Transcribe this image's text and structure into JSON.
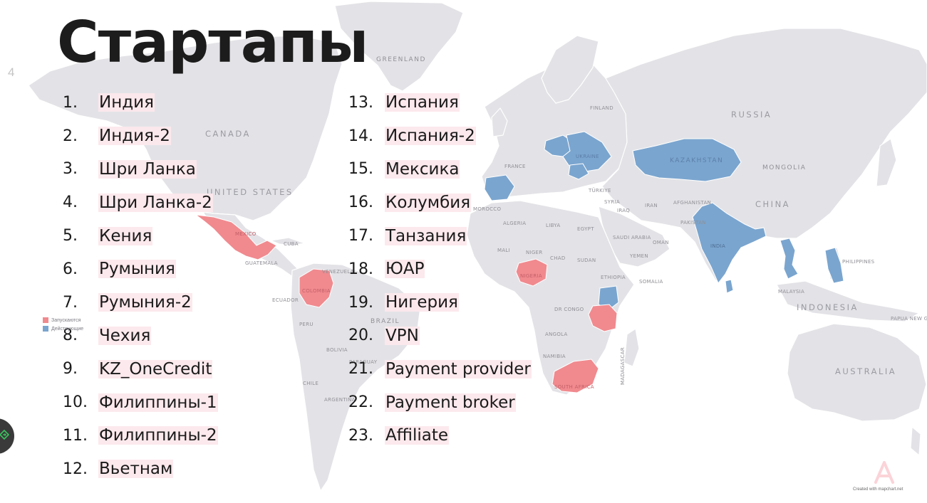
{
  "slide": {
    "title": "Стартапы",
    "page_number": "4"
  },
  "startups_left": [
    {
      "num": "1.",
      "name": "Индия"
    },
    {
      "num": "2.",
      "name": "Индия-2"
    },
    {
      "num": "3.",
      "name": "Шри Ланка"
    },
    {
      "num": "4.",
      "name": "Шри Ланка-2"
    },
    {
      "num": "5.",
      "name": "Кения"
    },
    {
      "num": "6.",
      "name": "Румыния"
    },
    {
      "num": "7.",
      "name": "Румыния-2"
    },
    {
      "num": "8.",
      "name": "Чехия"
    },
    {
      "num": "9.",
      "name": "KZ_OneCredit"
    },
    {
      "num": "10.",
      "name": "Филиппины-1"
    },
    {
      "num": "11.",
      "name": "Филиппины-2"
    },
    {
      "num": "12.",
      "name": "Вьетнам"
    }
  ],
  "startups_right": [
    {
      "num": "13.",
      "name": "Испания"
    },
    {
      "num": "14.",
      "name": "Испания-2"
    },
    {
      "num": "15.",
      "name": "Мексика"
    },
    {
      "num": "16.",
      "name": "Колумбия"
    },
    {
      "num": "17.",
      "name": "Танзания"
    },
    {
      "num": "18.",
      "name": "ЮАР"
    },
    {
      "num": "19.",
      "name": "Нигерия"
    },
    {
      "num": "20.",
      "name": "VPN"
    },
    {
      "num": "21.",
      "name": "Payment provider"
    },
    {
      "num": "22.",
      "name": "Payment broker"
    },
    {
      "num": "23.",
      "name": "Affiliate"
    }
  ],
  "legend": {
    "launching": {
      "label": "Запускаются",
      "color": "#f08a8f"
    },
    "active": {
      "label": "Действующие",
      "color": "#7aa5cf"
    }
  },
  "map_labels": {
    "greenland": "GREENLAND",
    "canada": "CANADA",
    "united_states": "UNITED STATES",
    "russia": "RUSSIA",
    "china": "CHINA",
    "australia": "AUSTRALIA",
    "indonesia": "INDONESIA",
    "kazakhstan": "KAZAKHSTAN",
    "mongolia": "MONGOLIA",
    "finland": "FINLAND",
    "france": "FRANCE",
    "ukraine": "UKRAINE",
    "turkey": "TÜRKIYE",
    "iran": "IRAN",
    "iraq": "IRAQ",
    "syria": "SYRIA",
    "afghanistan": "AFGHANISTAN",
    "pakistan": "PAKISTAN",
    "india": "INDIA",
    "saudi_arabia": "SAUDI ARABIA",
    "yemen": "YEMEN",
    "oman": "OMAN",
    "egypt": "EGYPT",
    "libya": "LIBYA",
    "algeria": "ALGERIA",
    "mali": "MALI",
    "niger": "NIGER",
    "chad": "CHAD",
    "sudan": "SUDAN",
    "ethiopia": "ETHIOPIA",
    "somalia": "SOMALIA",
    "nigeria": "NIGERIA",
    "dr_congo": "DR CONGO",
    "angola": "ANGOLA",
    "namibia": "NAMIBIA",
    "madagascar": "MADAGASCAR",
    "south_africa": "SOUTH AFRICA",
    "mexico": "MEXICO",
    "cuba": "CUBA",
    "guatemala": "GUATEMALA",
    "venezuela": "VENEZUELA",
    "colombia": "COLOMBIA",
    "ecuador": "ECUADOR",
    "peru": "PERU",
    "brazil": "BRAZIL",
    "bolivia": "BOLIVIA",
    "paraguay": "PARAGUAY",
    "chile": "CHILE",
    "argentina": "ARGENTINA",
    "morocco": "MOROCCO",
    "philippines": "PHILIPPINES",
    "malaysia": "MALAYSIA",
    "papua_new_guinea": "PAPUA NEW GUI",
    "greenland_sea": "",
    "kazakhstan2": ""
  },
  "credit": "Created with mapchart.net",
  "colors": {
    "land": "#e3e3e7",
    "border": "#ffffff",
    "launching": "#f08a8f",
    "active": "#7aa5cf",
    "list_highlight": "#fce8ec",
    "brand": "#fbd3d8"
  },
  "icons": {
    "nav": "diamond-arrow-icon",
    "brand": "letter-a-logo"
  }
}
